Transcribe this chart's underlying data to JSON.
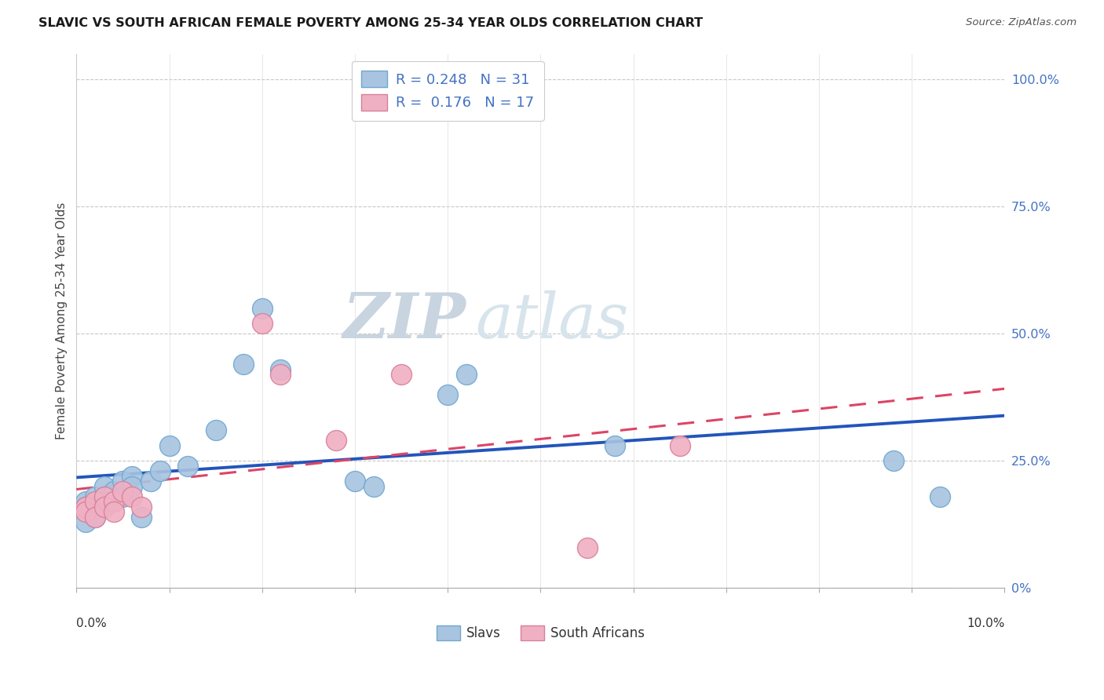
{
  "title": "SLAVIC VS SOUTH AFRICAN FEMALE POVERTY AMONG 25-34 YEAR OLDS CORRELATION CHART",
  "source": "Source: ZipAtlas.com",
  "ylabel": "Female Poverty Among 25-34 Year Olds",
  "ytick_vals": [
    0.0,
    0.25,
    0.5,
    0.75,
    1.0
  ],
  "ytick_labels": [
    "0%",
    "25.0%",
    "50.0%",
    "75.0%",
    "100.0%"
  ],
  "xlim": [
    0.0,
    0.1
  ],
  "ylim": [
    0.0,
    1.05
  ],
  "slavs_color": "#a8c4e0",
  "slavs_edge_color": "#6fa8d0",
  "sa_color": "#f0b0c4",
  "sa_edge_color": "#d88098",
  "trend_slavs_color": "#2255bb",
  "trend_sa_color": "#dd4466",
  "legend_r_slavs": "R = 0.248",
  "legend_n_slavs": "N = 31",
  "legend_r_sa": "R =  0.176",
  "legend_n_sa": "N = 17",
  "watermark_zip": "ZIP",
  "watermark_atlas": "atlas",
  "slavs_x": [
    0.001,
    0.001,
    0.001,
    0.002,
    0.002,
    0.002,
    0.003,
    0.003,
    0.003,
    0.004,
    0.004,
    0.005,
    0.005,
    0.006,
    0.006,
    0.007,
    0.008,
    0.009,
    0.01,
    0.012,
    0.015,
    0.018,
    0.02,
    0.022,
    0.03,
    0.032,
    0.04,
    0.042,
    0.058,
    0.088,
    0.093
  ],
  "slavs_y": [
    0.17,
    0.16,
    0.13,
    0.18,
    0.16,
    0.14,
    0.17,
    0.2,
    0.18,
    0.19,
    0.17,
    0.21,
    0.18,
    0.22,
    0.2,
    0.14,
    0.21,
    0.23,
    0.28,
    0.24,
    0.31,
    0.44,
    0.55,
    0.43,
    0.21,
    0.2,
    0.38,
    0.42,
    0.28,
    0.25,
    0.18
  ],
  "sa_x": [
    0.001,
    0.001,
    0.002,
    0.002,
    0.003,
    0.003,
    0.004,
    0.004,
    0.005,
    0.006,
    0.007,
    0.02,
    0.022,
    0.028,
    0.035,
    0.055,
    0.065
  ],
  "sa_y": [
    0.16,
    0.15,
    0.17,
    0.14,
    0.18,
    0.16,
    0.17,
    0.15,
    0.19,
    0.18,
    0.16,
    0.52,
    0.42,
    0.29,
    0.42,
    0.08,
    0.28
  ]
}
